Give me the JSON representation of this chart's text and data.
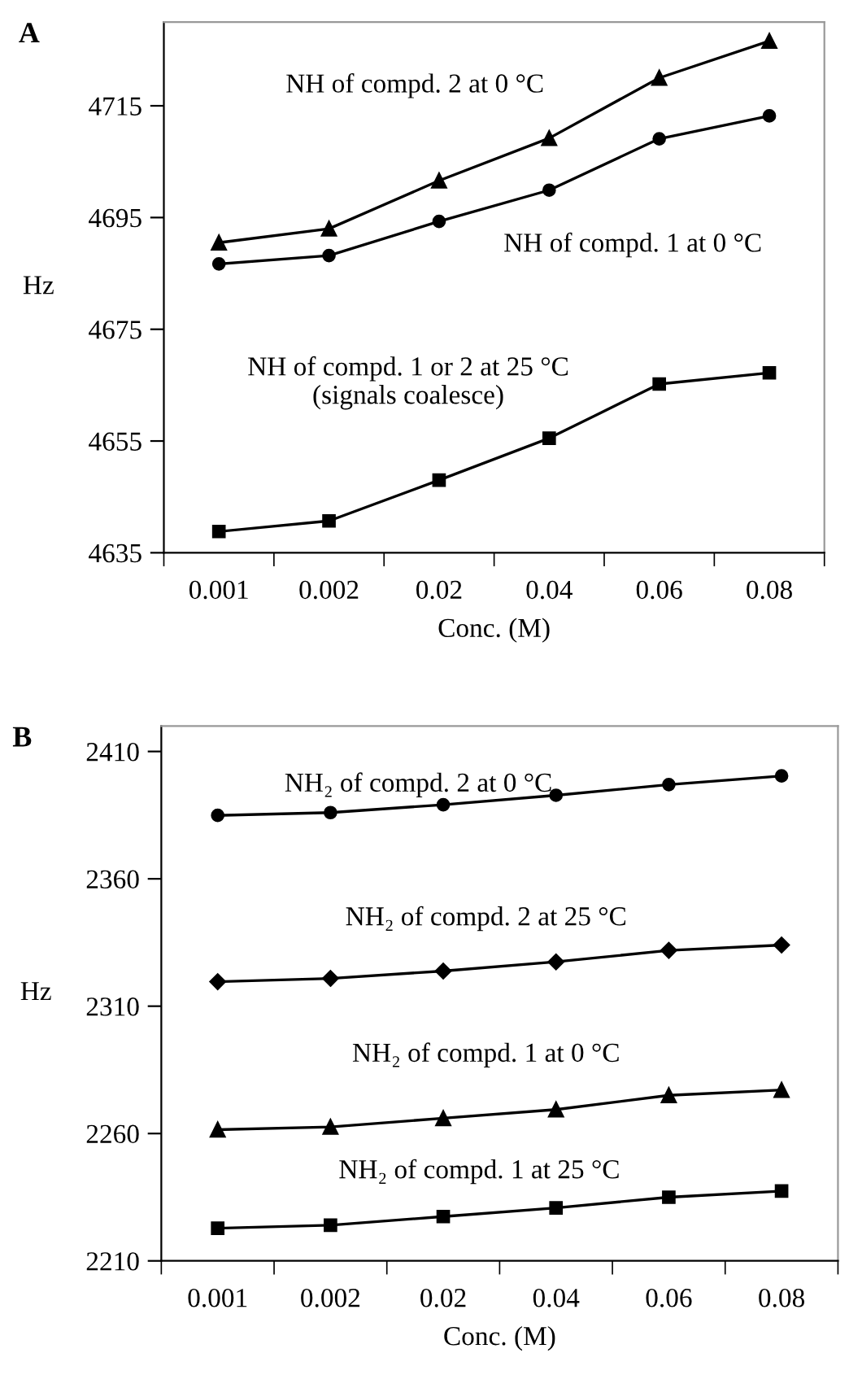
{
  "chart_data": [
    {
      "type": "line",
      "title": "A",
      "xlabel": "Conc. (M)",
      "ylabel": "Hz",
      "categories": [
        "0.001",
        "0.002",
        "0.02",
        "0.04",
        "0.06",
        "0.08"
      ],
      "ylim": [
        4635,
        4730
      ],
      "yticks": [
        4635,
        4655,
        4675,
        4695,
        4715
      ],
      "grid": false,
      "legend": false,
      "line_style": "solid",
      "series": [
        {
          "name": "NH of compd. 2 at 0 °C",
          "color": "#000000",
          "marker": "triangle",
          "values": [
            4690.5,
            4693,
            4701.6,
            4709.2,
            4720,
            4726.6
          ]
        },
        {
          "name": "NH of compd. 1 at 0 °C",
          "color": "#000000",
          "marker": "circle",
          "values": [
            4686.7,
            4688.2,
            4694.3,
            4699.9,
            4709.1,
            4713.2
          ]
        },
        {
          "name": "NH of compd. 1 or 2 at 25 °C\n(signals coalesce)",
          "color": "#000000",
          "marker": "square",
          "values": [
            4638.8,
            4640.7,
            4648,
            4655.5,
            4665.2,
            4667.2
          ]
        }
      ]
    },
    {
      "type": "line",
      "title": "B",
      "xlabel": "Conc. (M)",
      "ylabel": "Hz",
      "categories": [
        "0.001",
        "0.002",
        "0.02",
        "0.04",
        "0.06",
        "0.08"
      ],
      "ylim": [
        2210,
        2420
      ],
      "yticks": [
        2210,
        2260,
        2310,
        2360,
        2410
      ],
      "grid": false,
      "legend": false,
      "line_style": "solid",
      "series": [
        {
          "name": "NH₂ of compd. 2 at 0 °C",
          "color": "#000000",
          "marker": "circle",
          "values": [
            2384.9,
            2386,
            2389.1,
            2392.8,
            2397,
            2400.4
          ]
        },
        {
          "name": "NH₂ of compd. 2 at 25 °C",
          "color": "#000000",
          "marker": "diamond",
          "values": [
            2319.6,
            2320.9,
            2323.8,
            2327.4,
            2331.9,
            2334
          ]
        },
        {
          "name": "NH₂ of compd. 1 at 0 °C",
          "color": "#000000",
          "marker": "triangle",
          "values": [
            2261.5,
            2262.6,
            2266,
            2269.4,
            2275,
            2277.1
          ]
        },
        {
          "name": "NH₂ of compd. 1 at 25 °C",
          "color": "#000000",
          "marker": "square",
          "values": [
            2222.8,
            2224,
            2227.4,
            2230.8,
            2235,
            2237.4
          ]
        }
      ]
    }
  ]
}
